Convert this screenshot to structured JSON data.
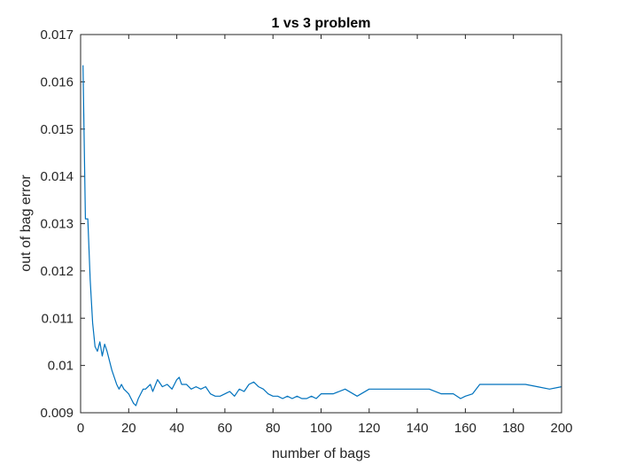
{
  "chart_data": {
    "type": "line",
    "title": "1 vs 3 problem",
    "xlabel": "number of bags",
    "ylabel": "out of bag error",
    "xlim": [
      0,
      200
    ],
    "ylim": [
      0.009,
      0.017
    ],
    "xticks": [
      0,
      20,
      40,
      60,
      80,
      100,
      120,
      140,
      160,
      180,
      200
    ],
    "yticks": [
      0.009,
      0.01,
      0.011,
      0.012,
      0.013,
      0.014,
      0.015,
      0.016,
      0.017
    ],
    "xtick_labels": [
      "0",
      "20",
      "40",
      "60",
      "80",
      "100",
      "120",
      "140",
      "160",
      "180",
      "200"
    ],
    "ytick_labels": [
      "0.009",
      "0.01",
      "0.011",
      "0.012",
      "0.013",
      "0.014",
      "0.015",
      "0.016",
      "0.017"
    ],
    "grid": false,
    "series": [
      {
        "color": "#0072bd",
        "x": [
          1,
          2,
          3,
          4,
          5,
          6,
          7,
          8,
          9,
          10,
          11,
          12,
          13,
          14,
          15,
          16,
          17,
          18,
          19,
          20,
          21,
          22,
          23,
          24,
          25,
          26,
          27,
          28,
          29,
          30,
          32,
          34,
          36,
          38,
          40,
          41,
          42,
          44,
          46,
          48,
          50,
          52,
          54,
          56,
          58,
          60,
          62,
          64,
          66,
          68,
          70,
          72,
          74,
          76,
          78,
          80,
          82,
          84,
          86,
          88,
          90,
          92,
          94,
          96,
          98,
          100,
          105,
          110,
          115,
          120,
          125,
          130,
          135,
          140,
          145,
          150,
          155,
          158,
          160,
          163,
          166,
          170,
          175,
          180,
          185,
          190,
          195,
          200
        ],
        "values": [
          0.01635,
          0.0131,
          0.0131,
          0.0118,
          0.0109,
          0.0104,
          0.0103,
          0.0105,
          0.0102,
          0.01045,
          0.0103,
          0.0101,
          0.0099,
          0.00975,
          0.0096,
          0.0095,
          0.0096,
          0.0095,
          0.00945,
          0.0094,
          0.0093,
          0.0092,
          0.00915,
          0.0093,
          0.0094,
          0.0095,
          0.0095,
          0.00955,
          0.0096,
          0.00945,
          0.0097,
          0.00955,
          0.0096,
          0.0095,
          0.0097,
          0.00975,
          0.0096,
          0.0096,
          0.0095,
          0.00955,
          0.0095,
          0.00955,
          0.0094,
          0.00935,
          0.00935,
          0.0094,
          0.00945,
          0.00935,
          0.0095,
          0.00945,
          0.0096,
          0.00965,
          0.00955,
          0.0095,
          0.0094,
          0.00935,
          0.00935,
          0.0093,
          0.00935,
          0.0093,
          0.00935,
          0.0093,
          0.0093,
          0.00935,
          0.0093,
          0.0094,
          0.0094,
          0.0095,
          0.00935,
          0.0095,
          0.0095,
          0.0095,
          0.0095,
          0.0095,
          0.0095,
          0.0094,
          0.0094,
          0.0093,
          0.00935,
          0.0094,
          0.0096,
          0.0096,
          0.0096,
          0.0096,
          0.0096,
          0.00955,
          0.0095,
          0.00955
        ]
      }
    ]
  }
}
